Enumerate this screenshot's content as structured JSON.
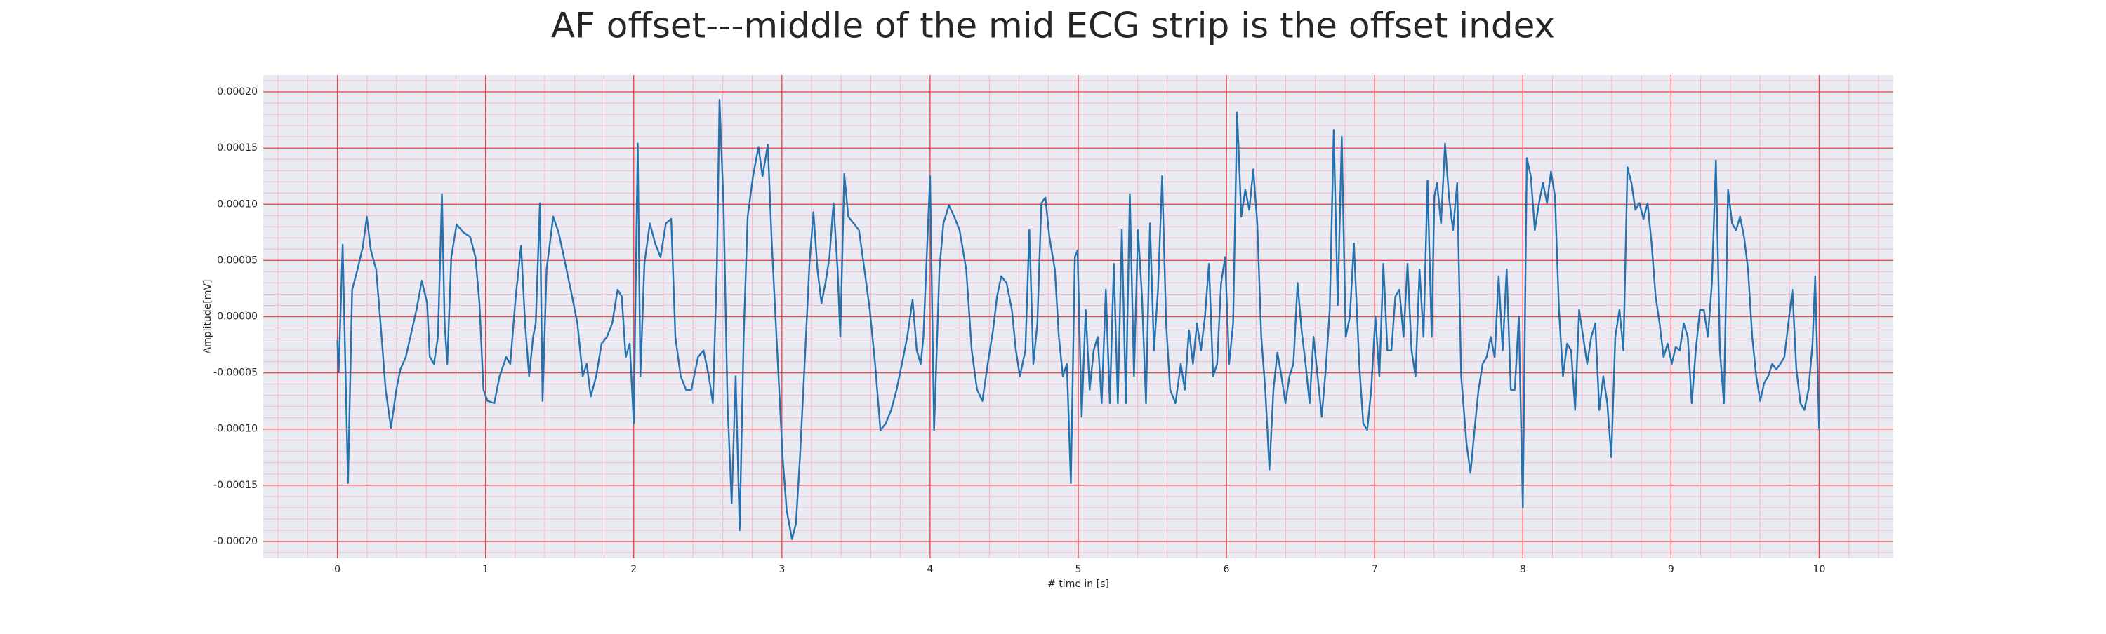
{
  "chart_data": {
    "type": "line",
    "title": "AF offset---middle of the mid ECG strip is the offset index",
    "xlabel": "# time in [s]",
    "ylabel": "Amplitude[mV]",
    "xlim": [
      -0.5,
      10.5
    ],
    "ylim": [
      -0.000215,
      0.000215
    ],
    "xticks": [
      0,
      1,
      2,
      3,
      4,
      5,
      6,
      7,
      8,
      9,
      10
    ],
    "yticks": [
      {
        "value": -0.0002,
        "label": "-0.00020"
      },
      {
        "value": -0.00015,
        "label": "-0.00015"
      },
      {
        "value": -0.0001,
        "label": "-0.00010"
      },
      {
        "value": -5e-05,
        "label": "-0.00005"
      },
      {
        "value": 0,
        "label": "0.00000"
      },
      {
        "value": 5e-05,
        "label": "0.00005"
      },
      {
        "value": 0.0001,
        "label": "0.00010"
      },
      {
        "value": 0.00015,
        "label": "0.00015"
      },
      {
        "value": 0.0002,
        "label": "0.00020"
      }
    ],
    "grid": true,
    "grid_color": "#f04040",
    "minor_grid_color": "#f2b8c8",
    "minor_grid_divisions": 5,
    "background": "#eaeaf2",
    "series": [
      {
        "color": "#2472b0",
        "x": [
          0.0,
          0.009,
          0.036,
          0.072,
          0.1,
          0.136,
          0.172,
          0.199,
          0.226,
          0.262,
          0.299,
          0.326,
          0.362,
          0.398,
          0.425,
          0.462,
          0.534,
          0.57,
          0.606,
          0.624,
          0.652,
          0.679,
          0.706,
          0.724,
          0.742,
          0.769,
          0.805,
          0.851,
          0.896,
          0.932,
          0.959,
          0.986,
          1.014,
          1.059,
          1.095,
          1.14,
          1.167,
          1.204,
          1.24,
          1.267,
          1.294,
          1.321,
          1.339,
          1.367,
          1.385,
          1.412,
          1.457,
          1.493,
          1.529,
          1.575,
          1.62,
          1.656,
          1.683,
          1.71,
          1.747,
          1.783,
          1.819,
          1.855,
          1.891,
          1.919,
          1.946,
          1.973,
          2.0,
          2.027,
          2.045,
          2.072,
          2.109,
          2.145,
          2.181,
          2.217,
          2.253,
          2.281,
          2.317,
          2.353,
          2.389,
          2.434,
          2.471,
          2.507,
          2.534,
          2.561,
          2.579,
          2.606,
          2.633,
          2.661,
          2.688,
          2.715,
          2.742,
          2.769,
          2.805,
          2.842,
          2.869,
          2.905,
          2.932,
          2.959,
          3.005,
          3.032,
          3.068,
          3.095,
          3.122,
          3.158,
          3.186,
          3.213,
          3.24,
          3.267,
          3.294,
          3.321,
          3.348,
          3.376,
          3.394,
          3.421,
          3.448,
          3.484,
          3.52,
          3.557,
          3.593,
          3.629,
          3.665,
          3.701,
          3.738,
          3.774,
          3.81,
          3.846,
          3.882,
          3.91,
          3.937,
          3.955,
          4.0,
          4.027,
          4.063,
          4.09,
          4.127,
          4.163,
          4.199,
          4.244,
          4.281,
          4.317,
          4.353,
          4.389,
          4.425,
          4.452,
          4.48,
          4.516,
          4.552,
          4.579,
          4.606,
          4.643,
          4.67,
          4.697,
          4.724,
          4.751,
          4.778,
          4.805,
          4.842,
          4.869,
          4.896,
          4.923,
          4.95,
          4.977,
          4.995,
          5.023,
          5.05,
          5.077,
          5.104,
          5.131,
          5.158,
          5.186,
          5.213,
          5.24,
          5.267,
          5.294,
          5.321,
          5.348,
          5.376,
          5.403,
          5.43,
          5.457,
          5.484,
          5.511,
          5.538,
          5.566,
          5.593,
          5.62,
          5.656,
          5.692,
          5.719,
          5.747,
          5.774,
          5.801,
          5.828,
          5.855,
          5.882,
          5.91,
          5.937,
          5.964,
          5.991,
          6.018,
          6.045,
          6.072,
          6.1,
          6.127,
          6.154,
          6.181,
          6.208,
          6.235,
          6.262,
          6.29,
          6.317,
          6.344,
          6.371,
          6.398,
          6.425,
          6.452,
          6.48,
          6.507,
          6.534,
          6.561,
          6.588,
          6.615,
          6.643,
          6.67,
          6.697,
          6.724,
          6.751,
          6.778,
          6.805,
          6.833,
          6.86,
          6.896,
          6.923,
          6.95,
          6.977,
          7.005,
          7.032,
          7.059,
          7.086,
          7.113,
          7.14,
          7.167,
          7.195,
          7.222,
          7.249,
          7.276,
          7.303,
          7.33,
          7.357,
          7.385,
          7.403,
          7.421,
          7.448,
          7.475,
          7.502,
          7.529,
          7.557,
          7.584,
          7.62,
          7.647,
          7.674,
          7.701,
          7.729,
          7.756,
          7.783,
          7.81,
          7.837,
          7.864,
          7.891,
          7.919,
          7.946,
          7.973,
          8.0,
          8.027,
          8.054,
          8.081,
          8.109,
          8.136,
          8.163,
          8.19,
          8.217,
          8.244,
          8.271,
          8.299,
          8.326,
          8.353,
          8.38,
          8.407,
          8.434,
          8.462,
          8.489,
          8.516,
          8.543,
          8.57,
          8.597,
          8.624,
          8.652,
          8.679,
          8.706,
          8.733,
          8.76,
          8.787,
          8.814,
          8.842,
          8.869,
          8.896,
          8.923,
          8.95,
          8.977,
          9.005,
          9.032,
          9.059,
          9.086,
          9.113,
          9.14,
          9.167,
          9.195,
          9.222,
          9.249,
          9.276,
          9.303,
          9.33,
          9.357,
          9.385,
          9.412,
          9.439,
          9.466,
          9.493,
          9.52,
          9.548,
          9.575,
          9.602,
          9.629,
          9.656,
          9.683,
          9.71,
          9.738,
          9.765,
          9.792,
          9.819,
          9.846,
          9.873,
          9.9,
          9.928,
          9.955,
          9.973,
          10.0
        ],
        "values": [
          -2.1e-05,
          -4.9e-05,
          6.4e-05,
          -0.000148,
          2.4e-05,
          4.2e-05,
          6.2e-05,
          8.9e-05,
          5.9e-05,
          4.2e-05,
          -1.8e-05,
          -6.5e-05,
          -9.9e-05,
          -6.5e-05,
          -4.7e-05,
          -3.6e-05,
          6e-06,
          3.2e-05,
          1.2e-05,
          -3.6e-05,
          -4.2e-05,
          -1.8e-05,
          0.000109,
          -6e-06,
          -4.2e-05,
          5.3e-05,
          8.2e-05,
          7.5e-05,
          7.1e-05,
          5.3e-05,
          1.2e-05,
          -6.5e-05,
          -7.5e-05,
          -7.7e-05,
          -5.3e-05,
          -3.6e-05,
          -4.2e-05,
          1.8e-05,
          6.3e-05,
          -6e-06,
          -5.3e-05,
          -1.8e-05,
          -6e-06,
          0.000101,
          -7.5e-05,
          4.2e-05,
          8.9e-05,
          7.5e-05,
          5.3e-05,
          2.4e-05,
          -6e-06,
          -5.3e-05,
          -4.2e-05,
          -7.1e-05,
          -5.3e-05,
          -2.4e-05,
          -1.8e-05,
          -6e-06,
          2.4e-05,
          1.8e-05,
          -3.6e-05,
          -2.4e-05,
          -9.5e-05,
          0.000154,
          -5.3e-05,
          4.7e-05,
          8.3e-05,
          6.5e-05,
          5.3e-05,
          8.3e-05,
          8.7e-05,
          -1.8e-05,
          -5.3e-05,
          -6.5e-05,
          -6.5e-05,
          -3.6e-05,
          -3e-05,
          -5.3e-05,
          -7.7e-05,
          4.2e-05,
          0.000193,
          0.000101,
          -7.7e-05,
          -0.000166,
          -5.3e-05,
          -0.00019,
          -1.8e-05,
          8.9e-05,
          0.000125,
          0.000151,
          0.000125,
          0.000153,
          6.5e-05,
          -6e-06,
          -0.000125,
          -0.000172,
          -0.000198,
          -0.000184,
          -0.000125,
          -3e-05,
          4.7e-05,
          9.3e-05,
          4.2e-05,
          1.2e-05,
          3e-05,
          5.3e-05,
          0.000101,
          4.2e-05,
          -1.8e-05,
          0.000127,
          8.9e-05,
          8.3e-05,
          7.7e-05,
          4.2e-05,
          6e-06,
          -4.2e-05,
          -0.000101,
          -9.5e-05,
          -8.3e-05,
          -6.5e-05,
          -4.2e-05,
          -1.8e-05,
          1.5e-05,
          -3e-05,
          -4.2e-05,
          -1.8e-05,
          0.000125,
          -0.000101,
          4.2e-05,
          8.3e-05,
          9.9e-05,
          8.9e-05,
          7.7e-05,
          4.2e-05,
          -3e-05,
          -6.5e-05,
          -7.5e-05,
          -4.2e-05,
          -1.2e-05,
          1.8e-05,
          3.6e-05,
          3e-05,
          6e-06,
          -3e-05,
          -5.3e-05,
          -3e-05,
          7.7e-05,
          -4.2e-05,
          -6e-06,
          0.000101,
          0.000106,
          7.1e-05,
          4.2e-05,
          -1.8e-05,
          -5.3e-05,
          -4.2e-05,
          -0.000148,
          5.3e-05,
          5.9e-05,
          -8.9e-05,
          6e-06,
          -6.5e-05,
          -3e-05,
          -1.8e-05,
          -7.7e-05,
          2.4e-05,
          -7.7e-05,
          4.7e-05,
          -7.7e-05,
          7.7e-05,
          -7.7e-05,
          0.000109,
          -5.3e-05,
          7.7e-05,
          1.8e-05,
          -7.7e-05,
          8.3e-05,
          -3e-05,
          2.4e-05,
          0.000125,
          -6e-06,
          -6.5e-05,
          -7.7e-05,
          -4.2e-05,
          -6.5e-05,
          -1.2e-05,
          -4.2e-05,
          -6e-06,
          -3e-05,
          0,
          4.7e-05,
          -5.3e-05,
          -4.2e-05,
          3e-05,
          5.3e-05,
          -4.2e-05,
          -6e-06,
          0.000182,
          8.9e-05,
          0.000113,
          9.5e-05,
          0.000131,
          8.3e-05,
          -1.8e-05,
          -6.5e-05,
          -0.000136,
          -6.5e-05,
          -3.2e-05,
          -5.3e-05,
          -7.7e-05,
          -5.3e-05,
          -4.2e-05,
          3e-05,
          -1.2e-05,
          -4.2e-05,
          -7.7e-05,
          -1.8e-05,
          -5.3e-05,
          -8.9e-05,
          -4.7e-05,
          6e-06,
          0.000166,
          1e-05,
          0.00016,
          -1.8e-05,
          0,
          6.5e-05,
          -4.2e-05,
          -9.5e-05,
          -0.000101,
          -6.5e-05,
          0,
          -5.3e-05,
          4.7e-05,
          -3e-05,
          -3e-05,
          1.8e-05,
          2.4e-05,
          -1.8e-05,
          4.7e-05,
          -3e-05,
          -5.3e-05,
          4.2e-05,
          -1.8e-05,
          0.000121,
          -1.8e-05,
          0.000107,
          0.000119,
          8.3e-05,
          0.000154,
          0.000106,
          7.7e-05,
          0.000119,
          -5.3e-05,
          -0.000113,
          -0.000139,
          -0.000101,
          -6.5e-05,
          -4.2e-05,
          -3.6e-05,
          -1.8e-05,
          -3.6e-05,
          3.6e-05,
          -3e-05,
          4.2e-05,
          -6.5e-05,
          -6.5e-05,
          0,
          -0.00017,
          0.000141,
          0.000125,
          7.7e-05,
          0.000101,
          0.000119,
          0.000101,
          0.000129,
          0.000107,
          6e-06,
          -5.3e-05,
          -2.4e-05,
          -3e-05,
          -8.3e-05,
          6e-06,
          -1.8e-05,
          -4.2e-05,
          -1.8e-05,
          -6e-06,
          -8.3e-05,
          -5.3e-05,
          -7.7e-05,
          -0.000125,
          -1.8e-05,
          6e-06,
          -3e-05,
          0.000133,
          0.000119,
          9.5e-05,
          0.000101,
          8.7e-05,
          0.000101,
          6.5e-05,
          1.8e-05,
          -6e-06,
          -3.6e-05,
          -2.4e-05,
          -4.2e-05,
          -2.7e-05,
          -3e-05,
          -6e-06,
          -1.8e-05,
          -7.7e-05,
          -3e-05,
          6e-06,
          6e-06,
          -1.8e-05,
          3e-05,
          0.000139,
          -3e-05,
          -7.7e-05,
          0.000113,
          8.3e-05,
          7.7e-05,
          8.9e-05,
          7.1e-05,
          4.2e-05,
          -1.8e-05,
          -5.3e-05,
          -7.5e-05,
          -5.9e-05,
          -5.3e-05,
          -4.2e-05,
          -4.7e-05,
          -4.2e-05,
          -3.6e-05,
          -6e-06,
          2.4e-05,
          -4.7e-05,
          -7.7e-05,
          -8.3e-05,
          -6.5e-05,
          -2.4e-05,
          3.6e-05,
          -0.000101
        ]
      }
    ]
  }
}
